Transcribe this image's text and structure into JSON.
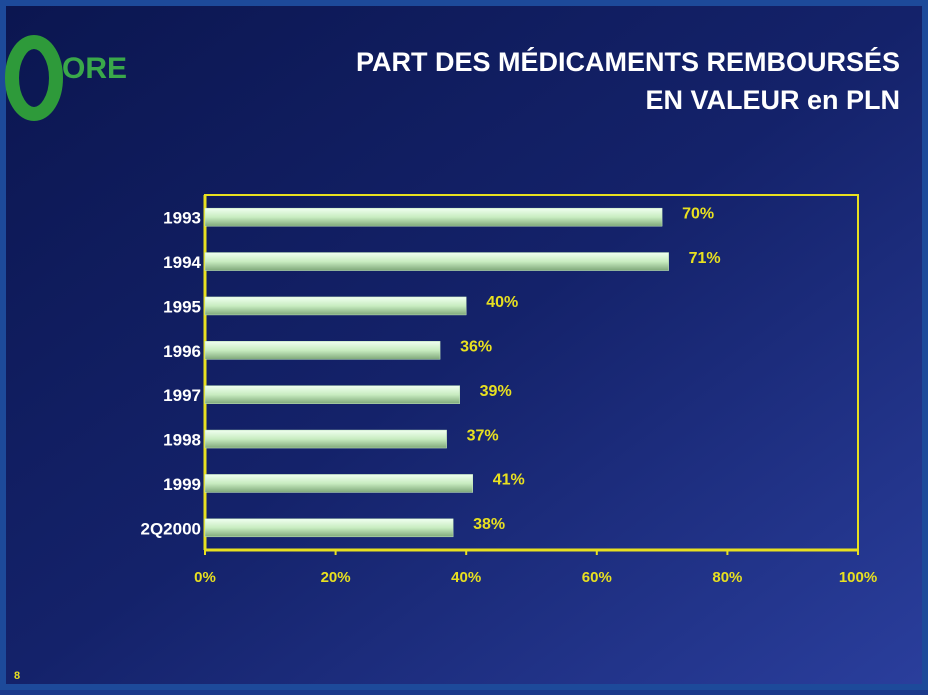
{
  "logo": "ORE",
  "page_number": "8",
  "chart_data": {
    "type": "hbar",
    "title": [
      "PART DES MÉDICAMENTS REMBOURSÉS",
      "EN VALEUR en PLN"
    ],
    "categories": [
      "1993",
      "1994",
      "1995",
      "1996",
      "1997",
      "1998",
      "1999",
      "2Q2000"
    ],
    "values": [
      70,
      71,
      40,
      36,
      39,
      37,
      41,
      38
    ],
    "value_labels": [
      "70%",
      "71%",
      "40%",
      "36%",
      "39%",
      "37%",
      "41%",
      "38%"
    ],
    "color": "#c8ecc0",
    "xlim": [
      0,
      100
    ],
    "xticks": [
      {
        "value": 0,
        "label": "0%"
      },
      {
        "value": 20,
        "label": "20%"
      },
      {
        "value": 40,
        "label": "40%"
      },
      {
        "value": 60,
        "label": "60%"
      },
      {
        "value": 80,
        "label": "80%"
      },
      {
        "value": 100,
        "label": "100%"
      }
    ]
  }
}
